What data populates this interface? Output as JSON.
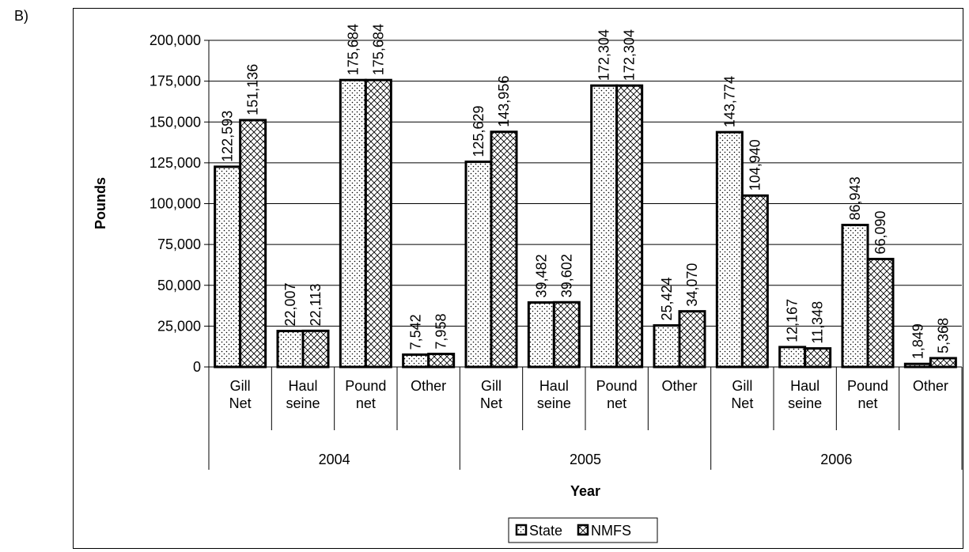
{
  "panel_label": "B)",
  "chart_data": {
    "type": "bar",
    "ylabel": "Pounds",
    "xlabel": "Year",
    "ylim": [
      0,
      200000
    ],
    "y_ticks": [
      "0",
      "25,000",
      "50,000",
      "75,000",
      "100,000",
      "125,000",
      "150,000",
      "175,000",
      "200,000"
    ],
    "y_tick_values": [
      0,
      25000,
      50000,
      75000,
      100000,
      125000,
      150000,
      175000,
      200000
    ],
    "grid": true,
    "legend_position": "bottom",
    "groups": [
      "2004",
      "2005",
      "2006"
    ],
    "categories": [
      [
        "Gill",
        "Net"
      ],
      [
        "Haul",
        "seine"
      ],
      [
        "Pound",
        "net"
      ],
      [
        "Other"
      ],
      [
        "Gill",
        "Net"
      ],
      [
        "Haul",
        "seine"
      ],
      [
        "Pound",
        "net"
      ],
      [
        "Other"
      ],
      [
        "Gill",
        "Net"
      ],
      [
        "Haul",
        "seine"
      ],
      [
        "Pound",
        "net"
      ],
      [
        "Other"
      ]
    ],
    "series": [
      {
        "name": "State",
        "pattern": "dots",
        "values": [
          122593,
          22007,
          175684,
          7542,
          125629,
          39482,
          172304,
          25424,
          143774,
          12167,
          86943,
          1849
        ],
        "labels": [
          "122,593",
          "22,007",
          "175,684",
          "7,542",
          "125,629",
          "39,482",
          "172,304",
          "25,424",
          "143,774",
          "12,167",
          "86,943",
          "1,849"
        ]
      },
      {
        "name": "NMFS",
        "pattern": "crosshatch",
        "values": [
          151136,
          22113,
          175684,
          7958,
          143956,
          39602,
          172304,
          34070,
          104940,
          11348,
          66090,
          5368
        ],
        "labels": [
          "151,136",
          "22,113",
          "175,684",
          "7,958",
          "143,956",
          "39,602",
          "172,304",
          "34,070",
          "104,940",
          "11,348",
          "66,090",
          "5,368"
        ]
      }
    ]
  }
}
